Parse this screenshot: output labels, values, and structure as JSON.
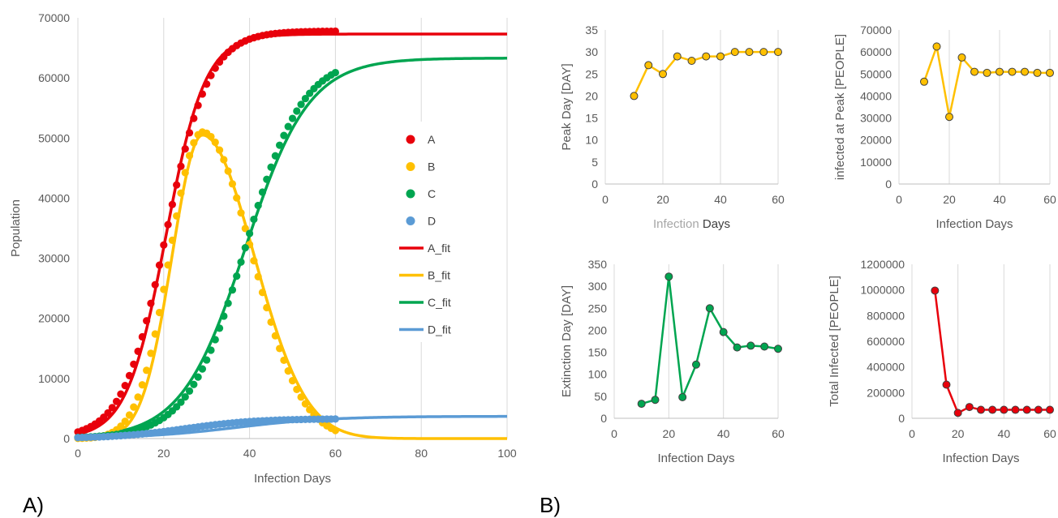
{
  "panel_labels": {
    "a": "A)",
    "b": "B)"
  },
  "chart_data": [
    {
      "id": "main",
      "type": "scatter",
      "xlabel": "Infection Days",
      "ylabel": "Population",
      "xlim": [
        0,
        100
      ],
      "ylim": [
        0,
        70000
      ],
      "x_ticks": [
        0,
        20,
        40,
        60,
        80,
        100
      ],
      "y_ticks": [
        0,
        10000,
        20000,
        30000,
        40000,
        50000,
        60000,
        70000
      ],
      "grid": "vertical",
      "legend_position": "right",
      "series": [
        {
          "name": "A",
          "kind": "points",
          "color": "#e8000b",
          "model": {
            "type": "logistic",
            "L": 67800,
            "k": 0.2,
            "x0": 20.5,
            "range": [
              0,
              60
            ]
          }
        },
        {
          "name": "B",
          "kind": "points",
          "color": "#ffc000",
          "model": {
            "type": "bell",
            "H": 51000,
            "peak": 29,
            "sl": 7.5,
            "sr": 11.5,
            "range": [
              0,
              60
            ]
          }
        },
        {
          "name": "C",
          "kind": "points",
          "color": "#00a550",
          "model": {
            "type": "logistic",
            "L": 63500,
            "k": 0.15,
            "x0": 39,
            "range": [
              0,
              60
            ]
          }
        },
        {
          "name": "D",
          "kind": "points",
          "color": "#5b9bd5",
          "model": {
            "type": "logistic",
            "L": 3300,
            "k": 0.12,
            "x0": 25,
            "range": [
              0,
              60
            ]
          }
        },
        {
          "name": "A_fit",
          "kind": "line",
          "color": "#e8000b",
          "model": {
            "type": "logistic",
            "L": 67300,
            "k": 0.22,
            "x0": 20.5,
            "range": [
              0,
              100
            ]
          }
        },
        {
          "name": "B_fit",
          "kind": "line",
          "color": "#ffc000",
          "model": {
            "type": "bell",
            "H": 50500,
            "peak": 29,
            "sl": 7.0,
            "sr": 12.0,
            "range": [
              0,
              100
            ]
          }
        },
        {
          "name": "C_fit",
          "kind": "line",
          "color": "#00a550",
          "model": {
            "type": "logistic",
            "L": 63300,
            "k": 0.135,
            "x0": 39,
            "range": [
              0,
              100
            ]
          }
        },
        {
          "name": "D_fit",
          "kind": "line",
          "color": "#5b9bd5",
          "model": {
            "type": "logistic",
            "L": 3700,
            "k": 0.09,
            "x0": 37,
            "range": [
              0,
              100
            ]
          }
        }
      ]
    },
    {
      "id": "peak-day",
      "type": "line",
      "xlabel_prefix": "Infection",
      "xlabel_suffix": " Days",
      "ylabel": "Peak Day [DAY]",
      "xlim": [
        0,
        60
      ],
      "ylim": [
        0,
        35
      ],
      "x_ticks": [
        0,
        20,
        40,
        60
      ],
      "y_ticks": [
        0,
        5,
        10,
        15,
        20,
        25,
        30,
        35
      ],
      "color": "#ffc000",
      "x": [
        10,
        15,
        20,
        25,
        30,
        35,
        40,
        45,
        50,
        55,
        60
      ],
      "y": [
        20,
        27,
        25,
        29,
        28,
        29,
        29,
        30,
        30,
        30,
        30
      ]
    },
    {
      "id": "infected-peak",
      "type": "line",
      "xlabel": "Infection Days",
      "ylabel": "infected at Peak [PEOPLE]",
      "xlim": [
        0,
        60
      ],
      "ylim": [
        0,
        70000
      ],
      "x_ticks": [
        0,
        20,
        40,
        60
      ],
      "y_ticks": [
        0,
        10000,
        20000,
        30000,
        40000,
        50000,
        60000,
        70000
      ],
      "color": "#ffc000",
      "x": [
        10,
        15,
        20,
        25,
        30,
        35,
        40,
        45,
        50,
        55,
        60
      ],
      "y": [
        46500,
        62500,
        30500,
        57500,
        51000,
        50500,
        51000,
        51000,
        51000,
        50500,
        50500
      ]
    },
    {
      "id": "extinction-day",
      "type": "line",
      "xlabel": "Infection Days",
      "ylabel": "Extinction Day [DAY]",
      "xlim": [
        0,
        60
      ],
      "ylim": [
        0,
        350
      ],
      "x_ticks": [
        0,
        20,
        40,
        60
      ],
      "y_ticks": [
        0,
        50,
        100,
        150,
        200,
        250,
        300,
        350
      ],
      "color": "#00a550",
      "x": [
        10,
        15,
        20,
        25,
        30,
        35,
        40,
        45,
        50,
        55,
        60
      ],
      "y": [
        33,
        42,
        322,
        48,
        122,
        250,
        196,
        161,
        165,
        163,
        158
      ]
    },
    {
      "id": "total-infected",
      "type": "line",
      "xlabel": "Infection Days",
      "ylabel": "Total Infected [PEOPLE]",
      "xlim": [
        0,
        60
      ],
      "ylim": [
        0,
        1200000
      ],
      "x_ticks": [
        0,
        20,
        40,
        60
      ],
      "y_ticks": [
        0,
        200000,
        400000,
        600000,
        800000,
        1000000,
        1200000
      ],
      "color": "#e8000b",
      "x": [
        10,
        15,
        20,
        25,
        30,
        35,
        40,
        45,
        50,
        55,
        60
      ],
      "y": [
        995000,
        262000,
        42000,
        88000,
        66000,
        66000,
        66000,
        66000,
        66000,
        66000,
        66000
      ]
    }
  ]
}
